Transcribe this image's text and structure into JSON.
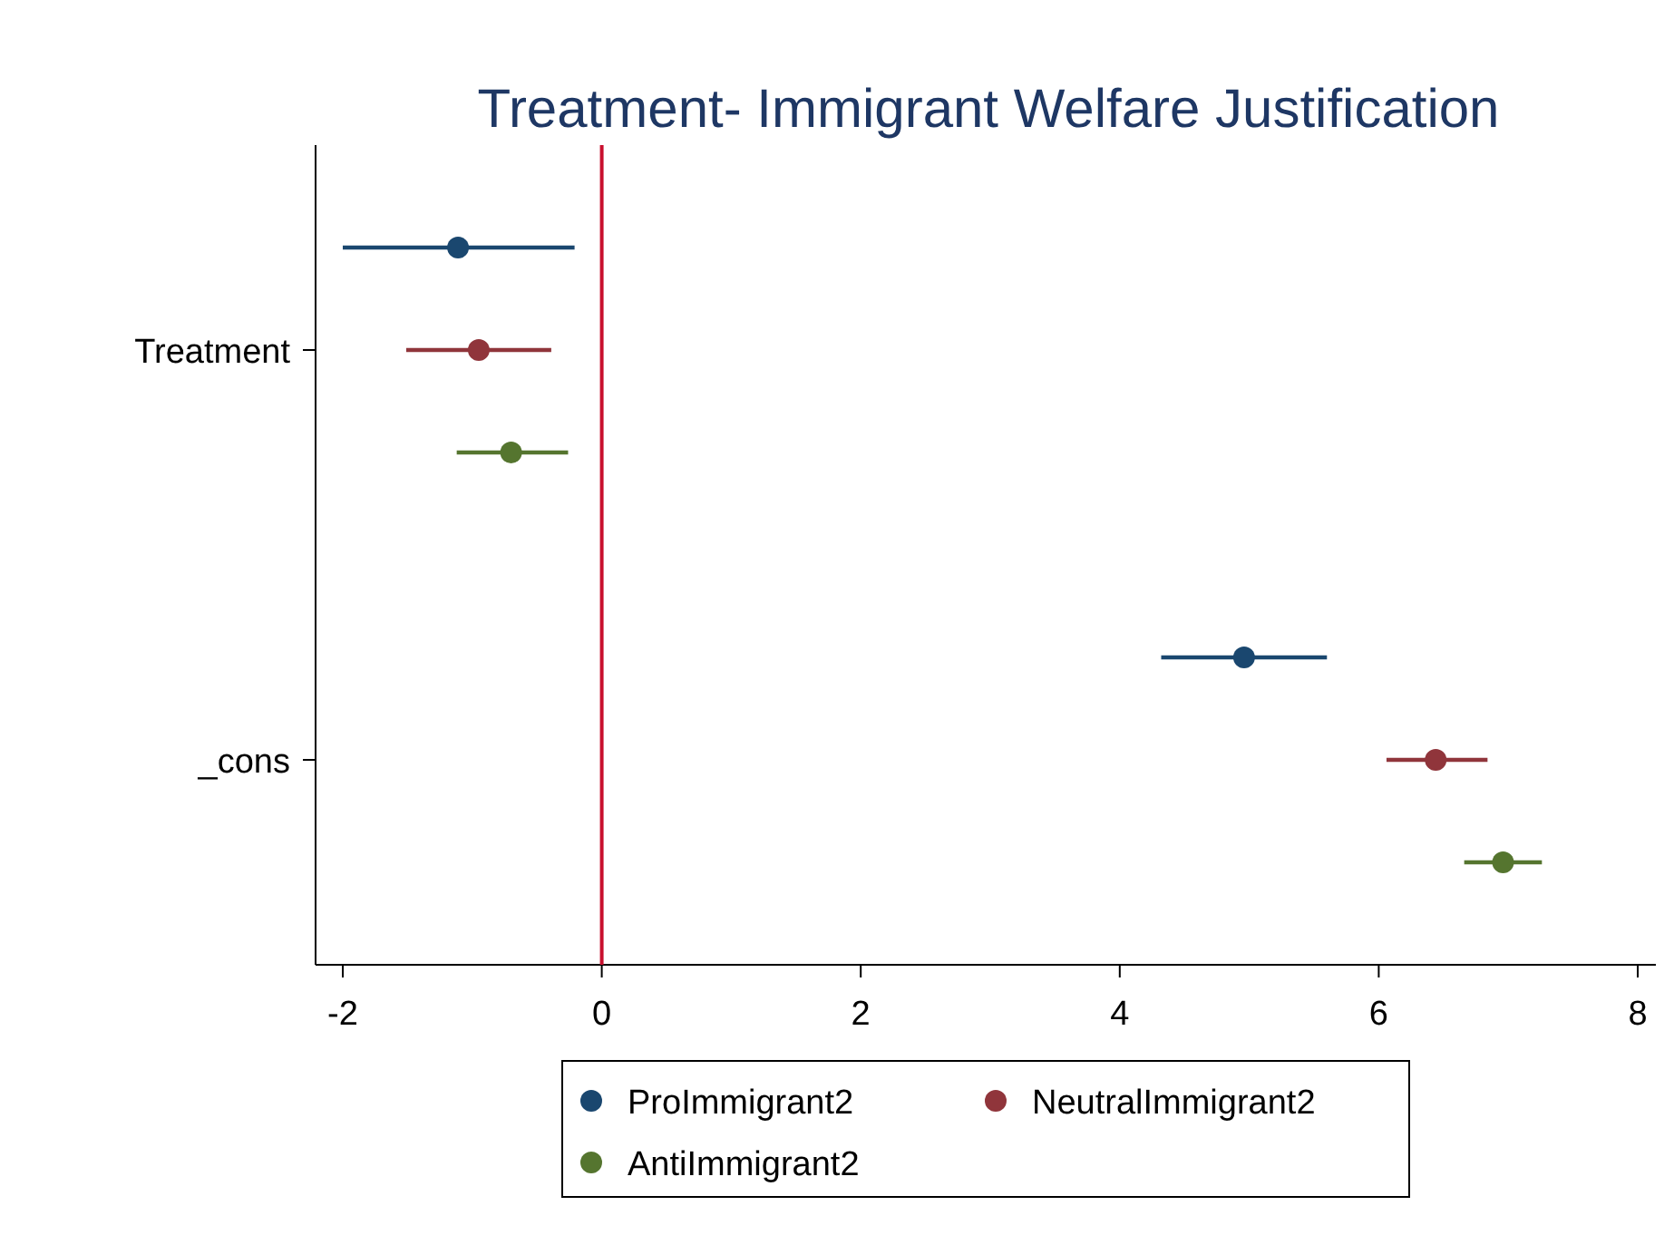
{
  "chart_data": {
    "type": "scatter",
    "orientation": "horizontal",
    "title": "Treatment- Immigrant Welfare Justification",
    "categories": [
      "Treatment",
      "_cons"
    ],
    "series": [
      {
        "name": "ProImmigrant2",
        "color": "#1a476f",
        "values": [
          -1.11,
          4.96
        ],
        "errors": [
          [
            -2.0,
            -0.21
          ],
          [
            4.32,
            5.6
          ]
        ]
      },
      {
        "name": "NeutralImmigrant2",
        "color": "#90353b",
        "values": [
          -0.95,
          6.44
        ],
        "errors": [
          [
            -1.51,
            -0.39
          ],
          [
            6.06,
            6.84
          ]
        ]
      },
      {
        "name": "AntiImmigrant2",
        "color": "#55752f",
        "values": [
          -0.7,
          6.96
        ],
        "errors": [
          [
            -1.12,
            -0.26
          ],
          [
            6.66,
            7.26
          ]
        ]
      }
    ],
    "xlim": [
      -2.21,
      8.14
    ],
    "xticks": [
      -2,
      0,
      2,
      4,
      6,
      8
    ],
    "ref_lines": [
      {
        "axis": "x",
        "value": 0,
        "color": "#c8102e"
      }
    ],
    "marker": "circle",
    "legend": "bottom",
    "grid": false
  }
}
